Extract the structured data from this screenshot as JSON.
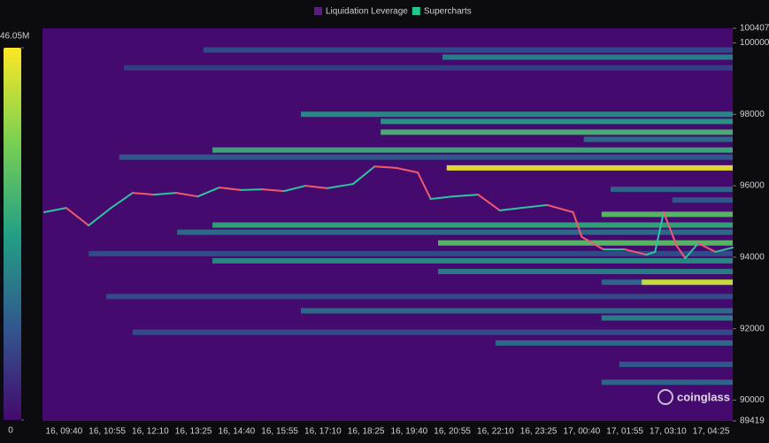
{
  "chart_data": {
    "type": "heatmap",
    "legend": [
      {
        "name": "Liquidation Leverage",
        "color": "#5b1d82"
      },
      {
        "name": "Supercharts",
        "color": "#22c58b"
      }
    ],
    "background": "#440a6d",
    "colorscale": [
      "#440a6d",
      "#31588e",
      "#23a085",
      "#7ad151",
      "#fde725"
    ],
    "colorbar_lim": [
      0,
      46050000
    ],
    "colorbar_ticks": [
      0,
      {
        "value": 46050000,
        "label": "46.05M"
      }
    ],
    "categories": [
      "16, 09:40",
      "16, 10:55",
      "16, 12:10",
      "16, 13:25",
      "16, 14:40",
      "16, 15:55",
      "16, 17:10",
      "16, 18:25",
      "16, 19:40",
      "16, 20:55",
      "16, 22:10",
      "16, 23:25",
      "17, 00:40",
      "17, 01:55",
      "17, 03:10",
      "17, 04:25"
    ],
    "ylim": [
      89419,
      100407
    ],
    "yticks": [
      89419,
      90000,
      92000,
      94000,
      96000,
      98000,
      100000,
      100407
    ],
    "bands": [
      {
        "price": 99800,
        "x_start": 3.23,
        "intensity": 10000000
      },
      {
        "price": 99600,
        "x_start": 8.77,
        "intensity": 18000000
      },
      {
        "price": 99300,
        "x_start": 1.39,
        "intensity": 8000000
      },
      {
        "price": 98000,
        "x_start": 5.49,
        "intensity": 20000000
      },
      {
        "price": 97800,
        "x_start": 7.34,
        "intensity": 22000000
      },
      {
        "price": 97500,
        "x_start": 7.34,
        "intensity": 28000000
      },
      {
        "price": 97300,
        "x_start": 12.05,
        "intensity": 15000000
      },
      {
        "price": 97000,
        "x_start": 3.44,
        "intensity": 26000000
      },
      {
        "price": 96800,
        "x_start": 1.28,
        "intensity": 12000000
      },
      {
        "price": 96500,
        "x_start": 8.87,
        "intensity": 44000000
      },
      {
        "price": 95900,
        "x_start": 12.67,
        "intensity": 14000000
      },
      {
        "price": 95600,
        "x_start": 14.1,
        "intensity": 12000000
      },
      {
        "price": 95200,
        "x_start": 12.46,
        "intensity": 30000000
      },
      {
        "price": 94900,
        "x_start": 3.44,
        "intensity": 25000000
      },
      {
        "price": 94700,
        "x_start": 2.62,
        "intensity": 15000000
      },
      {
        "price": 94400,
        "x_start": 8.67,
        "intensity": 30000000
      },
      {
        "price": 94100,
        "x_start": 0.57,
        "intensity": 10000000
      },
      {
        "price": 93900,
        "x_start": 3.44,
        "intensity": 20000000
      },
      {
        "price": 93600,
        "x_start": 8.67,
        "intensity": 18000000
      },
      {
        "price": 93300,
        "x_start": 12.46,
        "intensity": 14000000
      },
      {
        "price": 93300,
        "x_start": 13.39,
        "intensity": 42000000
      },
      {
        "price": 92900,
        "x_start": 0.98,
        "intensity": 10000000
      },
      {
        "price": 92500,
        "x_start": 5.49,
        "intensity": 15000000
      },
      {
        "price": 92300,
        "x_start": 12.46,
        "intensity": 18000000
      },
      {
        "price": 91900,
        "x_start": 1.59,
        "intensity": 10000000
      },
      {
        "price": 91600,
        "x_start": 10.0,
        "intensity": 15000000
      },
      {
        "price": 91000,
        "x_start": 12.87,
        "intensity": 12000000
      },
      {
        "price": 90500,
        "x_start": 12.46,
        "intensity": 14000000
      }
    ],
    "price": {
      "up_color": "#2ec4a0",
      "down_color": "#ef5a6f",
      "x": [
        -0.46,
        0.05,
        0.57,
        1.09,
        1.59,
        2.09,
        2.6,
        3.1,
        3.6,
        4.1,
        4.6,
        5.1,
        5.6,
        6.1,
        6.7,
        7.2,
        7.7,
        8.2,
        8.5,
        9.0,
        9.6,
        10.1,
        10.6,
        11.2,
        11.8,
        12.0,
        12.5,
        13.0,
        13.5,
        13.7,
        13.9,
        14.2,
        14.4,
        14.7,
        15.1,
        15.5
      ],
      "values": [
        95260,
        95380,
        94890,
        95380,
        95800,
        95750,
        95800,
        95700,
        95950,
        95880,
        95900,
        95850,
        96000,
        95930,
        96050,
        96540,
        96500,
        96370,
        95630,
        95700,
        95750,
        95310,
        95380,
        95460,
        95260,
        94570,
        94220,
        94220,
        94070,
        94150,
        95260,
        94320,
        93970,
        94390,
        94150,
        94270
      ]
    },
    "watermark": "coinglass"
  }
}
